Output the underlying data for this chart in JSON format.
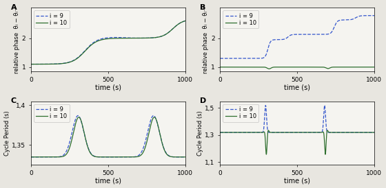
{
  "fig_width": 5.6,
  "fig_height": 2.74,
  "dpi": 100,
  "background_color": "#e8e6e0",
  "panel_bg": "#ffffff",
  "blue_color": "#3355cc",
  "green_color": "#2d6e2d",
  "legend_i9": "i = 9",
  "legend_i10": "i = 10",
  "xlabel": "time (s)",
  "ylabel_AB": "relative phase  θᵢ − θᵢ⁻¹",
  "ylabel_CD": "Cycle Period (s)",
  "panel_labels": [
    "A",
    "B",
    "C",
    "D"
  ]
}
